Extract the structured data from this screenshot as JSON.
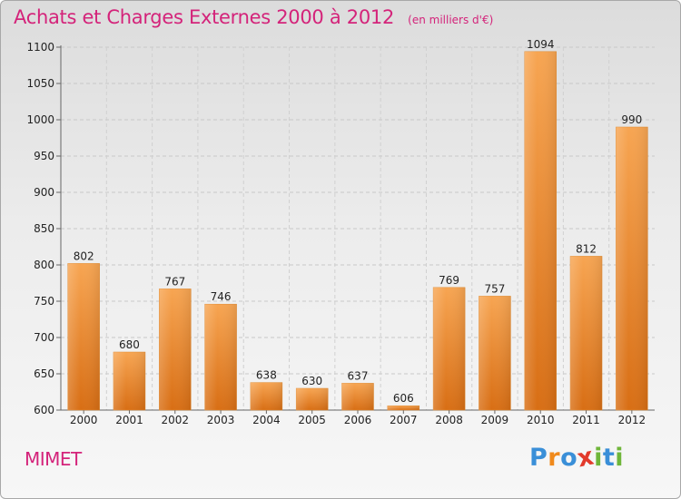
{
  "title": "Achats et Charges Externes 2000 à 2012",
  "unit": "(en milliers d'€)",
  "commune": "MIMET",
  "logo": {
    "letters": [
      {
        "ch": "P",
        "color": "#3a8fd8"
      },
      {
        "ch": "r",
        "color": "#f08a1c"
      },
      {
        "ch": "o",
        "color": "#3a8fd8"
      },
      {
        "ch": "x",
        "color": "#e23a2b"
      },
      {
        "ch": "i",
        "color": "#6fb63a"
      },
      {
        "ch": "t",
        "color": "#3a8fd8"
      },
      {
        "ch": "i",
        "color": "#6fb63a"
      }
    ]
  },
  "chart_data": {
    "type": "bar",
    "categories": [
      "2000",
      "2001",
      "2002",
      "2003",
      "2004",
      "2005",
      "2006",
      "2007",
      "2008",
      "2009",
      "2010",
      "2011",
      "2012"
    ],
    "values": [
      802,
      680,
      767,
      746,
      638,
      630,
      637,
      606,
      769,
      757,
      1094,
      812,
      990
    ],
    "ylim": [
      600,
      1100
    ],
    "yticks": [
      600,
      650,
      700,
      750,
      800,
      850,
      900,
      950,
      1000,
      1050,
      1100
    ],
    "grid": true,
    "bar_color": "#f39c3f",
    "title_color": "#d4237a"
  }
}
